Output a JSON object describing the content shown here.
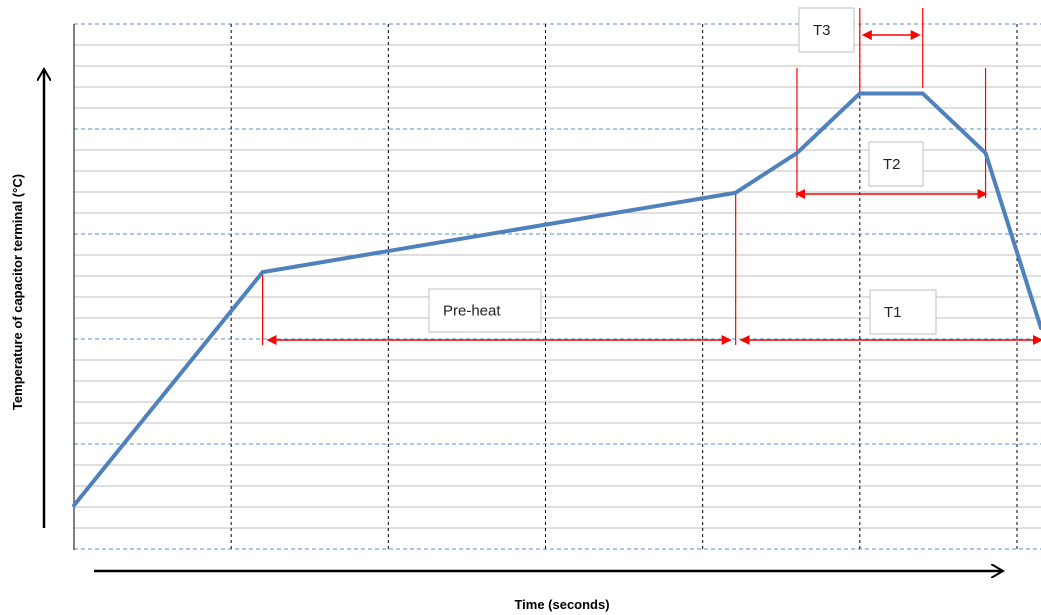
{
  "chart_data": {
    "type": "line",
    "title": "",
    "xlabel": "Time (seconds)",
    "ylabel": "Temperature of capacitor terminal (°C)",
    "xlim": [
      0,
      6
    ],
    "ylim": [
      0,
      5.3
    ],
    "grid": true,
    "series": [
      {
        "x": [
          0,
          1.2,
          4.21,
          4.6,
          5.0,
          5.4,
          5.8,
          6.0
        ],
        "values": [
          0.45,
          2.8,
          3.6,
          4.0,
          4.6,
          4.6,
          4.0,
          3.0
        ]
      }
    ],
    "annotations": [
      {
        "label": "Pre-heat",
        "x_start": 1.2,
        "x_end": 4.21
      },
      {
        "label": "T1",
        "x_start": 4.21,
        "x_end": 6.0
      },
      {
        "label": "T2",
        "x_start": 4.6,
        "x_end": 5.8
      },
      {
        "label": "T3",
        "x_start": 5.0,
        "x_end": 5.4
      }
    ]
  },
  "colors": {
    "series_line": "#4f81bd",
    "annotation": "#ff0000",
    "major_dashed_grid": "#5b8fd1",
    "minor_grid": "#bfbfbf",
    "vertical_grid": "#000000"
  }
}
